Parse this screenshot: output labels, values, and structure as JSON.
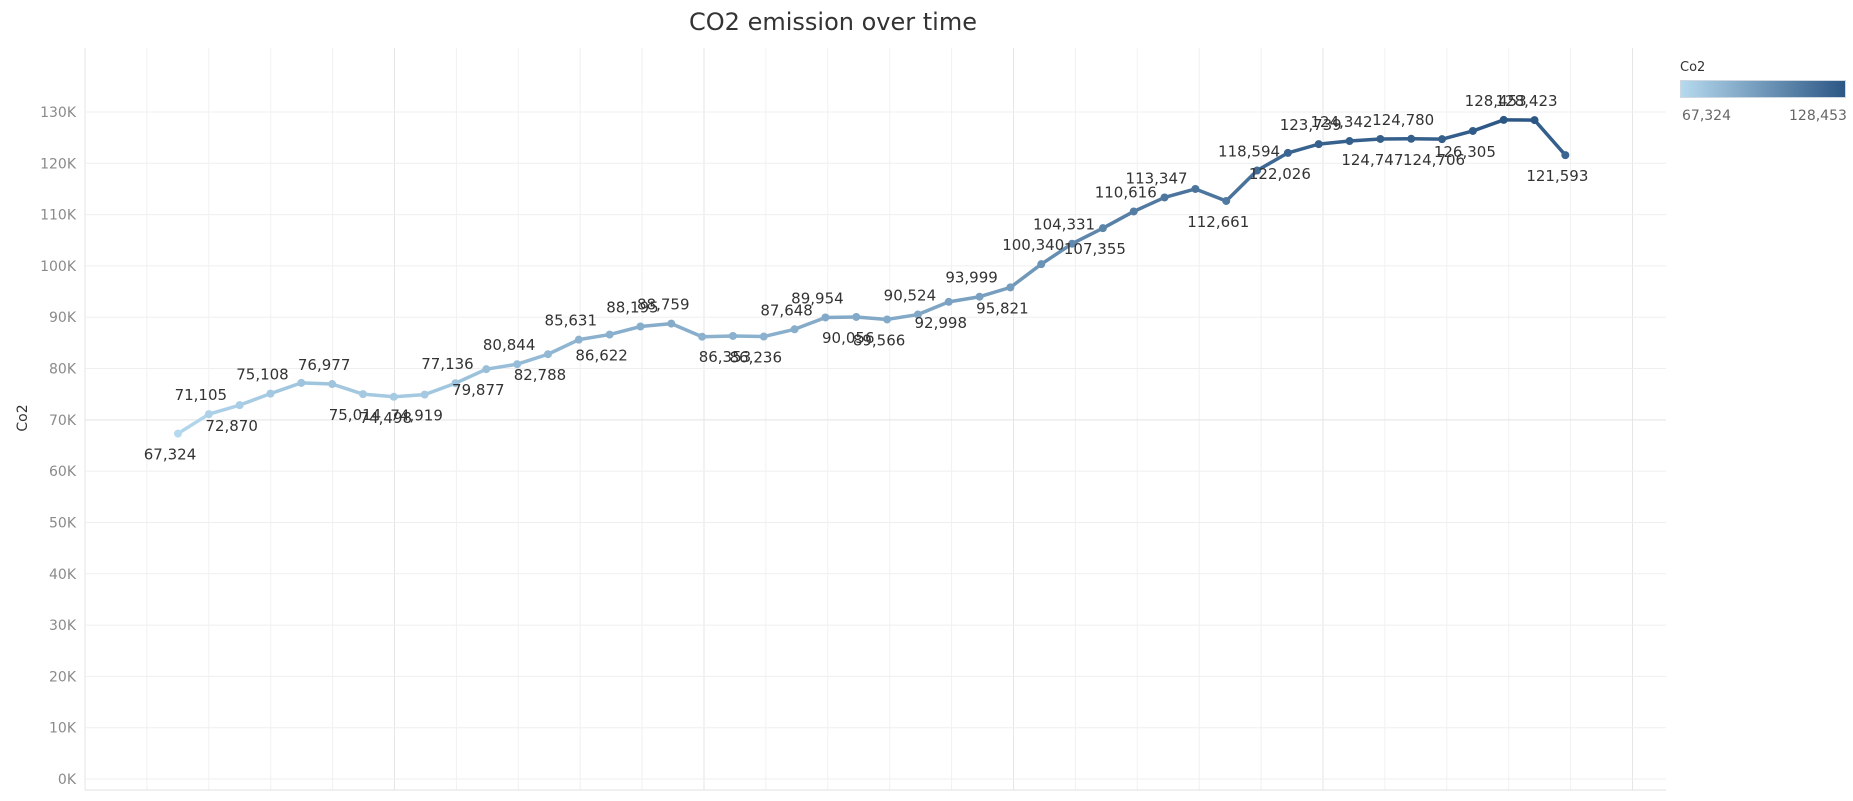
{
  "chart_data": {
    "type": "line",
    "title": "CO2 emission over time",
    "ylabel": "Co2",
    "xlabel": "",
    "ylim": [
      0,
      135000
    ],
    "y_ticks": [
      0,
      10000,
      20000,
      30000,
      40000,
      50000,
      60000,
      70000,
      80000,
      90000,
      100000,
      110000,
      120000,
      130000
    ],
    "y_tick_labels": [
      "0K",
      "10K",
      "20K",
      "30K",
      "40K",
      "50K",
      "60K",
      "70K",
      "80K",
      "90K",
      "100K",
      "110K",
      "120K",
      "130K"
    ],
    "grid": true,
    "color_encoding": "Co2",
    "color_range": [
      "#b5d9ee",
      "#2c5785"
    ],
    "series": [
      {
        "values": [
          67324,
          71105,
          72870,
          75108,
          77200,
          76977,
          75014,
          74498,
          74919,
          77136,
          79877,
          80844,
          82788,
          85631,
          86622,
          88195,
          88759,
          86200,
          86353,
          86236,
          87648,
          89954,
          90056,
          89566,
          90524,
          92998,
          93999,
          95821,
          100340,
          104331,
          107355,
          110616,
          113347,
          115000,
          112661,
          118594,
          122026,
          123739,
          124342,
          124747,
          124780,
          124706,
          126305,
          128453,
          128423,
          121593
        ],
        "labels": [
          "67,324",
          "71,105",
          "72,870",
          "75,108",
          "",
          "76,977",
          "75,014",
          "74,498",
          "74,919",
          "77,136",
          "79,877",
          "80,844",
          "82,788",
          "85,631",
          "86,622",
          "88,195",
          "88,759",
          "",
          "86,353",
          "86,236",
          "87,648",
          "89,954",
          "90,056",
          "89,566",
          "90,524",
          "92,998",
          "93,999",
          "95,821",
          "100,340",
          "104,331",
          "107,355",
          "110,616",
          "113,347",
          "",
          "112,661",
          "118,594",
          "122,026",
          "123,739",
          "124,342",
          "124,747",
          "124,780",
          "124,706",
          "126,305",
          "128,453",
          "128,423",
          "121,593"
        ],
        "label_position": [
          "below",
          "above",
          "below",
          "above",
          "",
          "above",
          "below",
          "below",
          "below",
          "above",
          "below",
          "above",
          "below",
          "above",
          "below",
          "above",
          "above",
          "",
          "below",
          "below",
          "above",
          "above",
          "below",
          "below",
          "above",
          "below",
          "above",
          "below",
          "above",
          "above",
          "below",
          "above",
          "above",
          "",
          "below",
          "above",
          "below",
          "above",
          "above",
          "below",
          "above",
          "below",
          "below",
          "above",
          "above",
          "below"
        ]
      }
    ]
  },
  "legend": {
    "title": "Co2",
    "min_label": "67,324",
    "max_label": "128,453"
  }
}
